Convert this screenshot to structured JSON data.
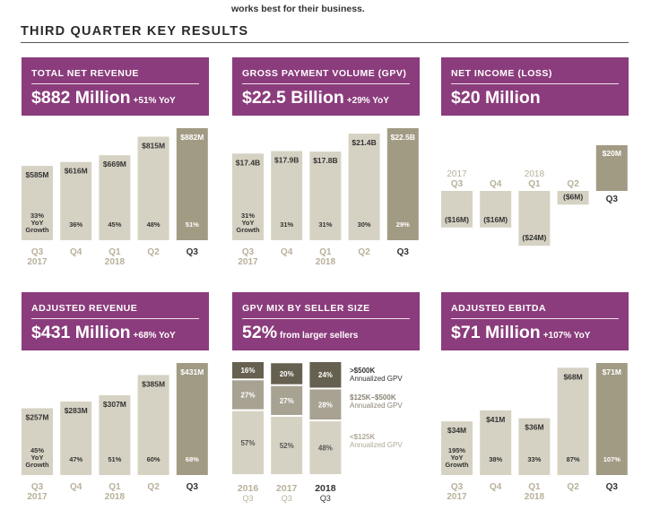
{
  "intro_text": "works best for their business.",
  "section_title": "THIRD QUARTER KEY RESULTS",
  "colors": {
    "header_bg": "#8b3c7c",
    "bar_light": "#d6d2c3",
    "bar_dark": "#a29b84",
    "label_dark": "#333333",
    "label_muted": "#b8b09a"
  },
  "panels": {
    "total_net_revenue": {
      "label": "TOTAL NET REVENUE",
      "value": "$882 Million",
      "change": "+51% YoY"
    },
    "gpv": {
      "label": "GROSS PAYMENT VOLUME (GPV)",
      "value": "$22.5 Billion",
      "change": "+29% YoY"
    },
    "net_income": {
      "label": "NET INCOME (LOSS)",
      "value": "$20 Million",
      "change": ""
    },
    "adjusted_revenue": {
      "label": "ADJUSTED REVENUE",
      "value": "$431 Million",
      "change": "+68% YoY"
    },
    "gpv_mix": {
      "label": "GPV MIX BY SELLER SIZE",
      "value": "52%",
      "change": "from larger sellers"
    },
    "adjusted_ebitda": {
      "label": "ADJUSTED EBITDA",
      "value": "$71 Million",
      "change": "+107% YoY"
    }
  },
  "chart_data": [
    {
      "id": "total_net_revenue",
      "type": "bar",
      "categories": [
        "Q3 2017",
        "Q4",
        "Q1 2018",
        "Q2",
        "Q3"
      ],
      "values": [
        585,
        616,
        669,
        815,
        882
      ],
      "value_labels": [
        "$585M",
        "$616M",
        "$669M",
        "$815M",
        "$882M"
      ],
      "growth_labels": [
        "33% YoY Growth",
        "36%",
        "45%",
        "48%",
        "51%"
      ],
      "ylim": [
        0,
        882
      ]
    },
    {
      "id": "gpv",
      "type": "bar",
      "categories": [
        "Q3 2017",
        "Q4",
        "Q1 2018",
        "Q2",
        "Q3"
      ],
      "values": [
        17.4,
        17.9,
        17.8,
        21.4,
        22.5
      ],
      "value_labels": [
        "$17.4B",
        "$17.9B",
        "$17.8B",
        "$21.4B",
        "$22.5B"
      ],
      "growth_labels": [
        "31% YoY Growth",
        "31%",
        "31%",
        "30%",
        "29%"
      ],
      "ylim": [
        0,
        22.5
      ]
    },
    {
      "id": "net_income",
      "type": "bar",
      "categories": [
        "2017 Q3",
        "Q4",
        "2018 Q1",
        "Q2",
        "Q3"
      ],
      "values": [
        -16,
        -16,
        -24,
        -6,
        20
      ],
      "value_labels": [
        "($16M)",
        "($16M)",
        "($24M)",
        "($6M)",
        "$20M"
      ],
      "ylim": [
        -24,
        20
      ]
    },
    {
      "id": "adjusted_revenue",
      "type": "bar",
      "categories": [
        "Q3 2017",
        "Q4",
        "Q1 2018",
        "Q2",
        "Q3"
      ],
      "values": [
        257,
        283,
        307,
        385,
        431
      ],
      "value_labels": [
        "$257M",
        "$283M",
        "$307M",
        "$385M",
        "$431M"
      ],
      "growth_labels": [
        "45% YoY Growth",
        "47%",
        "51%",
        "60%",
        "68%"
      ],
      "ylim": [
        0,
        431
      ]
    },
    {
      "id": "gpv_mix",
      "type": "bar",
      "stacked": true,
      "categories": [
        "2016 Q3",
        "2017 Q3",
        "2018 Q3"
      ],
      "series": [
        {
          "name": "<$125K Annualized GPV",
          "values": [
            57,
            52,
            48
          ]
        },
        {
          "name": "$125K–$500K Annualized GPV",
          "values": [
            27,
            27,
            28
          ]
        },
        {
          "name": ">$500K Annualized GPV",
          "values": [
            16,
            20,
            24
          ]
        }
      ],
      "ylim": [
        0,
        100
      ]
    },
    {
      "id": "adjusted_ebitda",
      "type": "bar",
      "categories": [
        "Q3 2017",
        "Q4",
        "Q1 2018",
        "Q2",
        "Q3"
      ],
      "values": [
        34,
        41,
        36,
        68,
        71
      ],
      "value_labels": [
        "$34M",
        "$41M",
        "$36M",
        "$68M",
        "$71M"
      ],
      "growth_labels": [
        "195% YoY Growth",
        "38%",
        "33%",
        "87%",
        "107%"
      ],
      "ylim": [
        0,
        71
      ]
    }
  ]
}
